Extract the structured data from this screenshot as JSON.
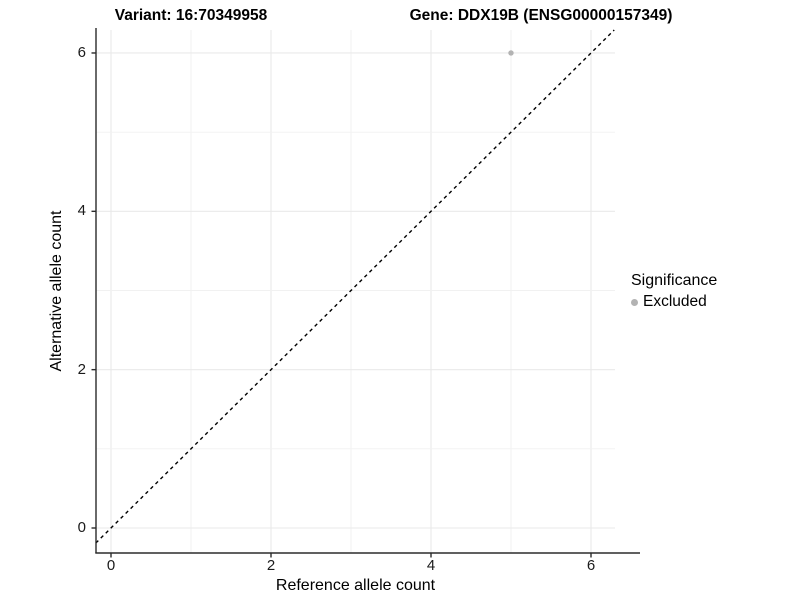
{
  "titles": {
    "variant": "Variant: 16:70349958",
    "gene": "Gene: DDX19B (ENSG00000157349)"
  },
  "chart_data": {
    "type": "scatter",
    "title_left": "Variant: 16:70349958",
    "title_right": "Gene: DDX19B (ENSG00000157349)",
    "xlabel": "Reference allele count",
    "ylabel": "Alternative allele count",
    "xlim": [
      -0.19,
      6.3
    ],
    "ylim": [
      -0.32,
      6.29
    ],
    "x_major_ticks": [
      0,
      2,
      4,
      6
    ],
    "y_major_ticks": [
      0,
      2,
      4,
      6
    ],
    "x_gridlines": [
      0,
      1,
      2,
      3,
      4,
      5,
      6
    ],
    "y_gridlines": [
      0,
      1,
      2,
      3,
      4,
      5,
      6
    ],
    "grid": true,
    "series": [
      {
        "name": "Excluded",
        "color": "#b3b3b3",
        "points": [
          {
            "x": 5,
            "y": 6
          }
        ]
      }
    ],
    "reference_line": {
      "type": "identity",
      "style": "dashed",
      "color": "#000000"
    },
    "legend": {
      "title": "Significance",
      "position": "right",
      "entries": [
        {
          "label": "Excluded",
          "color": "#b3b3b3"
        }
      ]
    }
  },
  "colors": {
    "background": "#ffffff",
    "axis_line": "#2b2b2b",
    "tick_mark": "#2b2b2b",
    "grid_major": "#e9e9e9",
    "grid_minor": "#f1f1f1",
    "tick_text": "#1a1a1a",
    "point_excluded": "#b3b3b3",
    "reference_line": "#000000"
  }
}
